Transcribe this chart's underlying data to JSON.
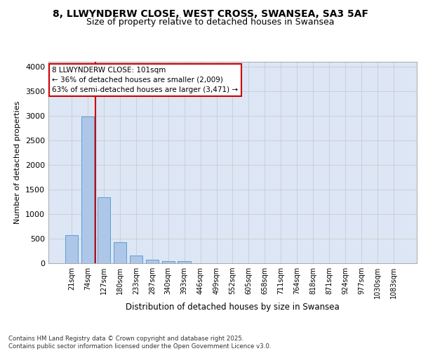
{
  "title": "8, LLWYNDERW CLOSE, WEST CROSS, SWANSEA, SA3 5AF",
  "subtitle": "Size of property relative to detached houses in Swansea",
  "xlabel": "Distribution of detached houses by size in Swansea",
  "ylabel": "Number of detached properties",
  "categories": [
    "21sqm",
    "74sqm",
    "127sqm",
    "180sqm",
    "233sqm",
    "287sqm",
    "340sqm",
    "393sqm",
    "446sqm",
    "499sqm",
    "552sqm",
    "605sqm",
    "658sqm",
    "711sqm",
    "764sqm",
    "818sqm",
    "871sqm",
    "924sqm",
    "977sqm",
    "1030sqm",
    "1083sqm"
  ],
  "values": [
    570,
    2980,
    1340,
    430,
    155,
    70,
    45,
    45,
    0,
    0,
    0,
    0,
    0,
    0,
    0,
    0,
    0,
    0,
    0,
    0,
    0
  ],
  "bar_color": "#aec6e8",
  "bar_edge_color": "#5a9fd4",
  "grid_color": "#cccccc",
  "background_color": "#dce6f5",
  "vline_color": "#cc0000",
  "annotation_line1": "8 LLWYNDERW CLOSE: 101sqm",
  "annotation_line2": "← 36% of detached houses are smaller (2,009)",
  "annotation_line3": "63% of semi-detached houses are larger (3,471) →",
  "annotation_box_edgecolor": "#cc0000",
  "footer": "Contains HM Land Registry data © Crown copyright and database right 2025.\nContains public sector information licensed under the Open Government Licence v3.0.",
  "ylim": [
    0,
    4100
  ],
  "yticks": [
    0,
    500,
    1000,
    1500,
    2000,
    2500,
    3000,
    3500,
    4000
  ]
}
